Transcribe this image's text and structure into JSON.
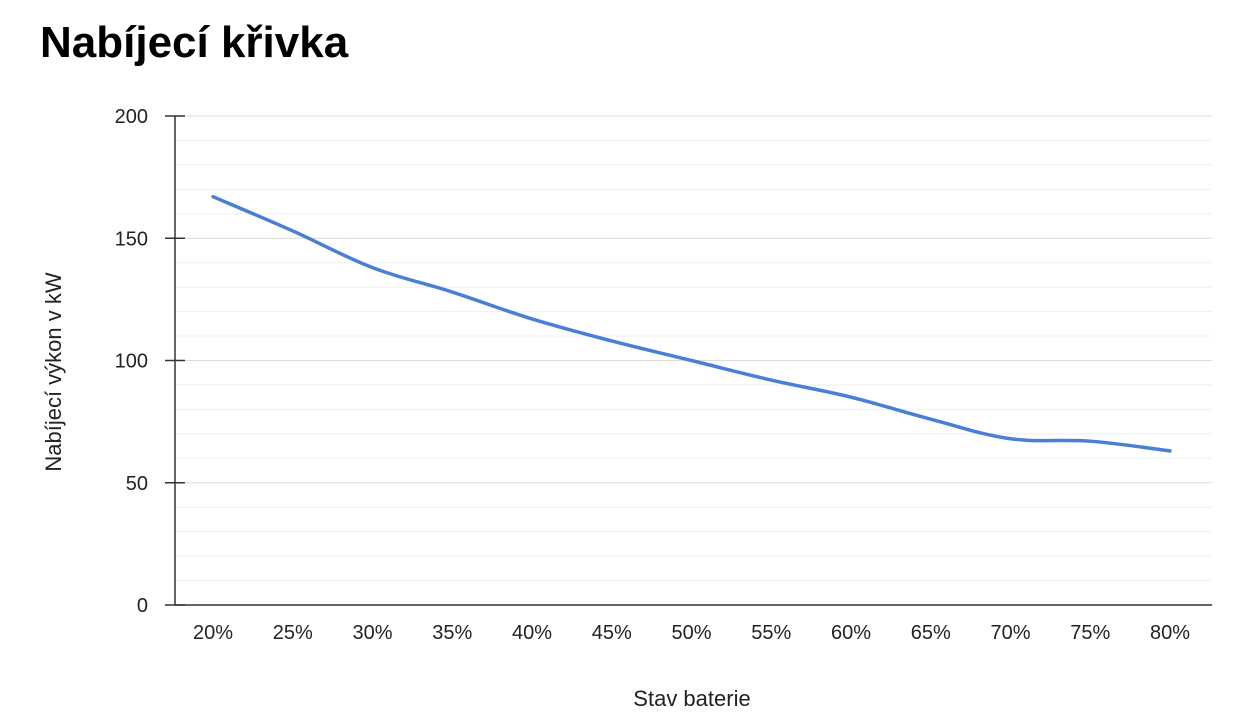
{
  "chart_data": {
    "type": "line",
    "title": "Nabíjecí křivka",
    "xlabel": "Stav baterie",
    "ylabel": "Nabíjecí výkon v kW",
    "categories": [
      "20%",
      "25%",
      "30%",
      "35%",
      "40%",
      "45%",
      "50%",
      "55%",
      "60%",
      "65%",
      "70%",
      "75%",
      "80%"
    ],
    "y_ticks": [
      "0",
      "50",
      "100",
      "150",
      "200"
    ],
    "ylim": [
      0,
      200
    ],
    "grid": true,
    "legend": "none",
    "series": [
      {
        "values": [
          167,
          153,
          138,
          128,
          117,
          108,
          100,
          92,
          85,
          76,
          68,
          67,
          63
        ],
        "color": "#4a7fd6"
      }
    ]
  }
}
